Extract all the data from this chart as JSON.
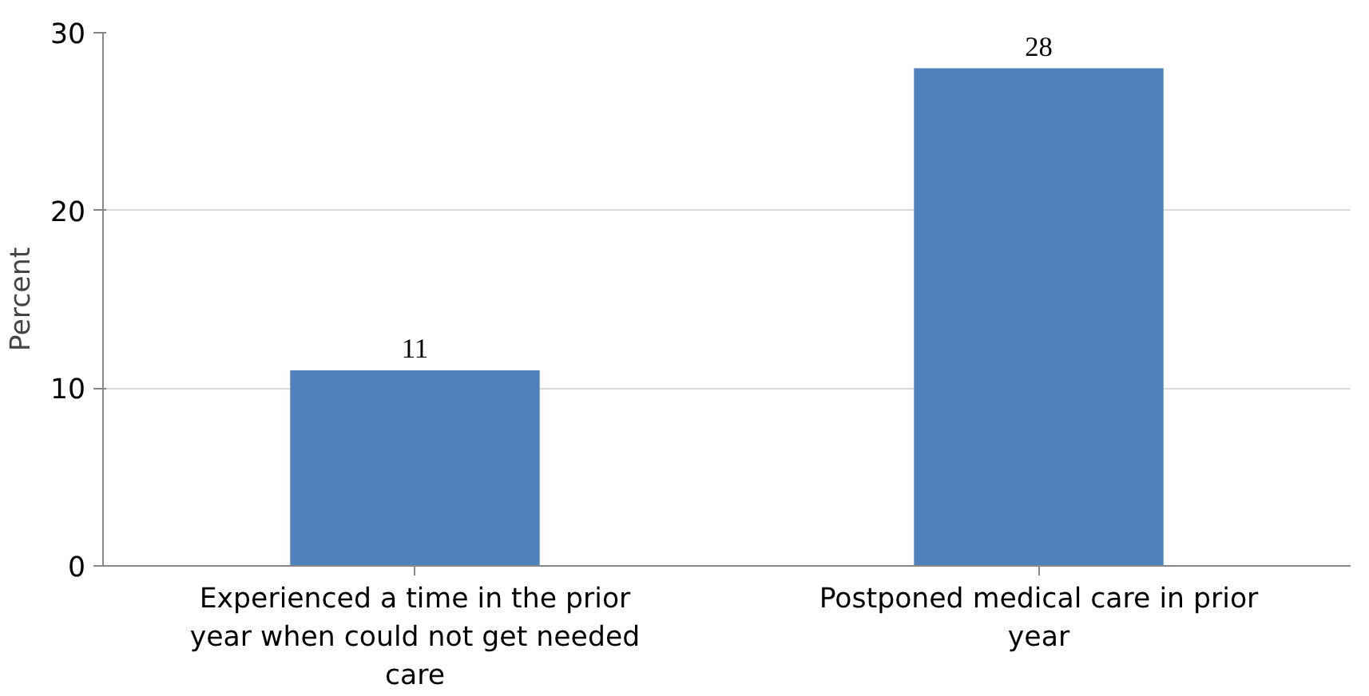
{
  "chart_data": {
    "type": "bar",
    "ylabel": "Percent",
    "categories": [
      "Experienced a time in the prior year when could not get needed care",
      "Postponed medical care in prior year"
    ],
    "values": [
      11,
      28
    ],
    "color": "#4f81bd",
    "ylim": [
      0,
      30
    ],
    "yticks": [
      0,
      10,
      20,
      30
    ],
    "grid": "y",
    "data_labels": true
  }
}
